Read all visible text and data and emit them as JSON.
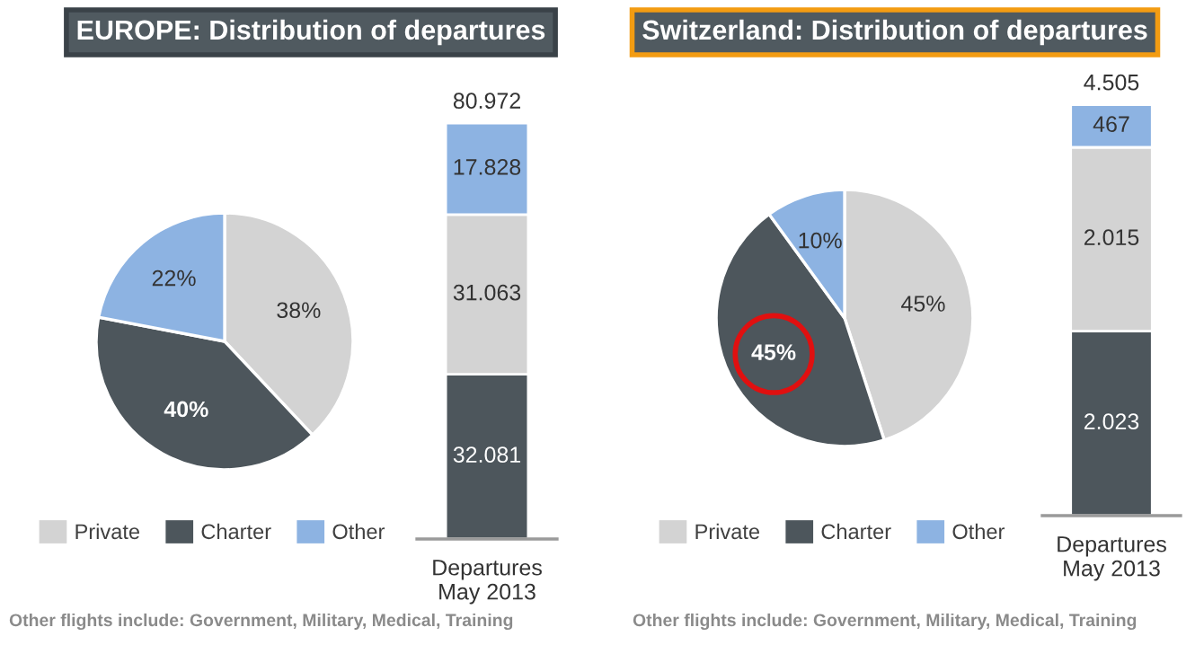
{
  "chart_data": [
    {
      "type": "pie",
      "title": "EUROPE: Distribution of departures",
      "categories": [
        "Private",
        "Charter",
        "Other"
      ],
      "values": [
        38,
        40,
        22
      ],
      "colors": [
        "#d3d3d3",
        "#4d565c",
        "#8db3e2"
      ],
      "value_labels": [
        "38%",
        "40%",
        "22%"
      ],
      "legend": "bottom",
      "annotations": [
        "Other flights include: Government, Military, Medical, Training"
      ]
    },
    {
      "type": "bar",
      "stacked": true,
      "categories": [
        "Departures\nMay 2013"
      ],
      "series": [
        {
          "color": "#4d565c",
          "values": [
            32081
          ],
          "value_labels": [
            "32.081"
          ]
        },
        {
          "color": "#d3d3d3",
          "values": [
            31063
          ],
          "value_labels": [
            "31.063"
          ]
        },
        {
          "color": "#8db3e2",
          "values": [
            17828
          ],
          "value_labels": [
            "17.828"
          ]
        }
      ],
      "totals": [
        "80.972"
      ]
    },
    {
      "type": "pie",
      "title": "Switzerland: Distribution of departures",
      "categories": [
        "Private",
        "Charter",
        "Other"
      ],
      "values": [
        45,
        45,
        10
      ],
      "colors": [
        "#d3d3d3",
        "#4d565c",
        "#8db3e2"
      ],
      "value_labels": [
        "45%",
        "45%",
        "10%"
      ],
      "legend": "bottom",
      "annotations": [
        "Other flights include: Government, Military, Medical, Training"
      ]
    },
    {
      "type": "bar",
      "stacked": true,
      "categories": [
        "Departures\nMay 2013"
      ],
      "series": [
        {
          "color": "#4d565c",
          "values": [
            2023
          ],
          "value_labels": [
            "2.023"
          ]
        },
        {
          "color": "#d3d3d3",
          "values": [
            2015
          ],
          "value_labels": [
            "2.015"
          ]
        },
        {
          "color": "#8db3e2",
          "values": [
            467
          ],
          "value_labels": [
            "467"
          ]
        }
      ],
      "totals": [
        "4.505"
      ]
    }
  ]
}
